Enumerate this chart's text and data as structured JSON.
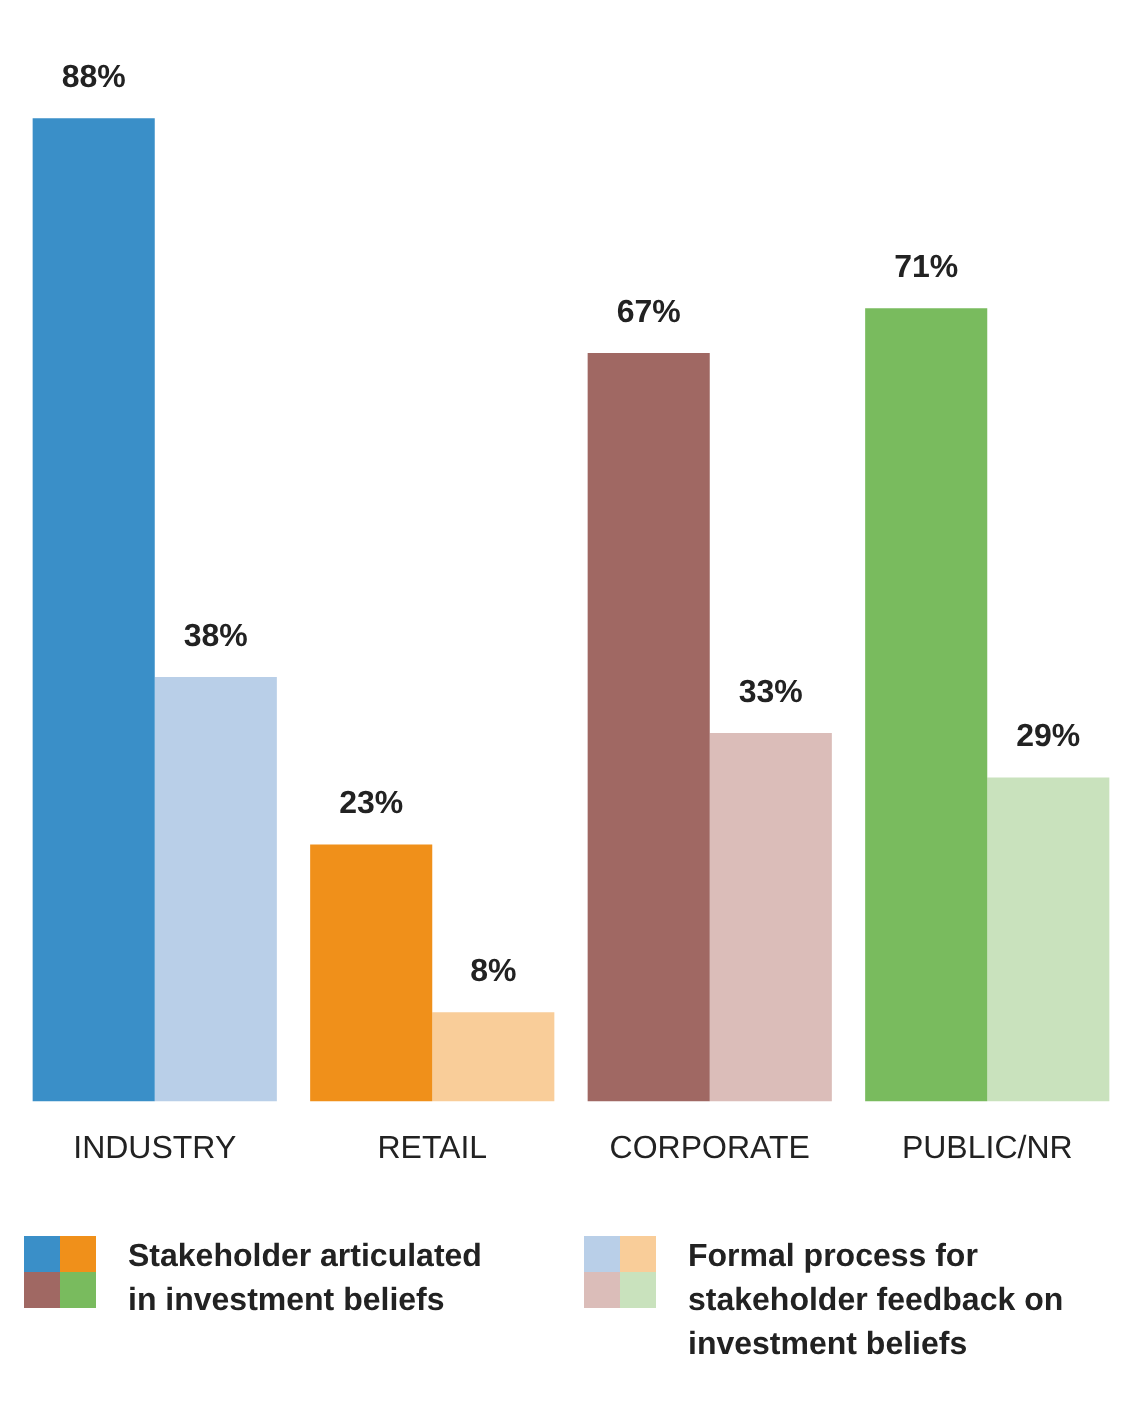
{
  "chart_data": {
    "type": "bar",
    "categories": [
      "INDUSTRY",
      "RETAIL",
      "CORPORATE",
      "PUBLIC/NR"
    ],
    "series": [
      {
        "name": "Stakeholder articulated in investment beliefs",
        "colors": [
          "#3a8fc8",
          "#f0901a",
          "#a06863",
          "#79bb5e"
        ],
        "values": [
          88,
          23,
          67,
          71
        ],
        "value_labels": [
          "88%",
          "23%",
          "67%",
          "71%"
        ]
      },
      {
        "name": "Formal process for stakeholder feedback on investment beliefs",
        "colors": [
          "#b9cfe8",
          "#f9cd99",
          "#dbbdb9",
          "#c9e2bd"
        ],
        "values": [
          38,
          8,
          33,
          29
        ],
        "value_labels": [
          "38%",
          "8%",
          "33%",
          "29%"
        ]
      }
    ],
    "legend": "bottom",
    "grid": false
  }
}
